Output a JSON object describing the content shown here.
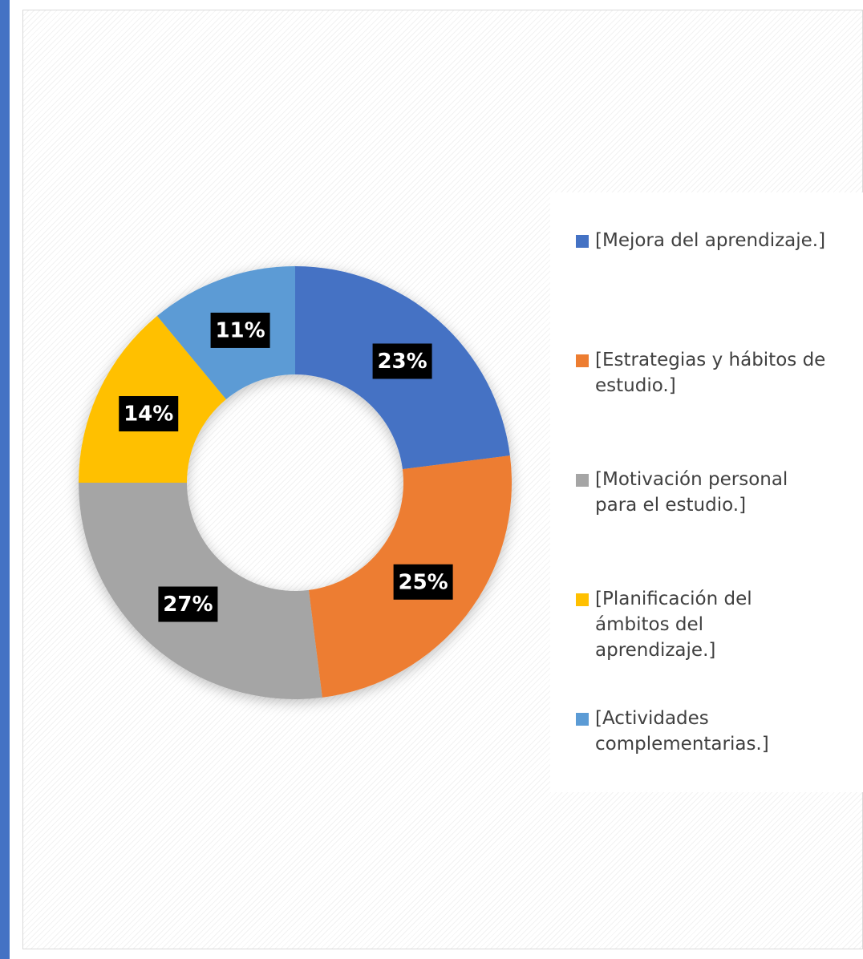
{
  "chart_data": {
    "type": "donut",
    "categories": [
      "[Mejora del aprendizaje.]",
      "[Estrategias y hábitos de estudio.]",
      "[Motivación personal para el estudio.]",
      "[Planificación del ámbitos del aprendizaje.]",
      "[Actividades complementarias.]"
    ],
    "values": [
      23,
      25,
      27,
      14,
      11
    ],
    "value_labels": [
      "23%",
      "25%",
      "27%",
      "14%",
      "11%"
    ],
    "colors": [
      "#4472c4",
      "#ed7d31",
      "#a5a5a5",
      "#ffc000",
      "#5b9bd5"
    ],
    "legend": "right"
  }
}
